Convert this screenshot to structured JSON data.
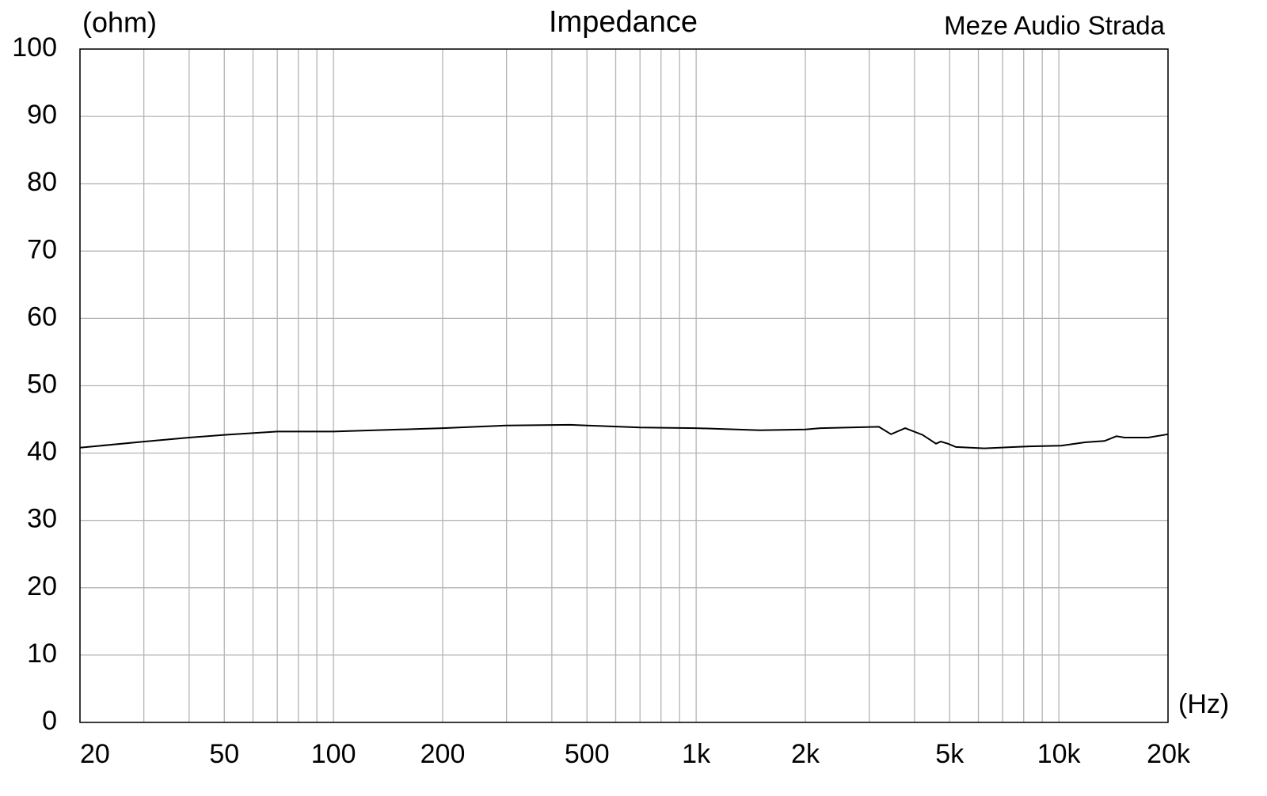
{
  "chart_data": {
    "type": "line",
    "title": "Impedance",
    "subtitle": "Meze Audio Strada",
    "y_label": "(ohm)",
    "x_label": "(Hz)",
    "xscale": "log",
    "xlim": [
      20,
      20000
    ],
    "ylim": [
      0,
      100
    ],
    "xticks": [
      20,
      50,
      100,
      200,
      500,
      {
        "value": 1000,
        "label": "1k"
      },
      {
        "value": 2000,
        "label": "2k"
      },
      {
        "value": 5000,
        "label": "5k"
      },
      {
        "value": 10000,
        "label": "10k"
      },
      {
        "value": 20000,
        "label": "20k"
      }
    ],
    "xminorticks": [
      30,
      40,
      60,
      70,
      80,
      90,
      300,
      400,
      600,
      700,
      800,
      900,
      3000,
      4000,
      6000,
      7000,
      8000,
      9000
    ],
    "yticks": [
      0,
      10,
      20,
      30,
      40,
      50,
      60,
      70,
      80,
      90,
      100
    ],
    "grid": true,
    "x": [
      20,
      30,
      40,
      50,
      70,
      100,
      200,
      300,
      450,
      500,
      700,
      1000,
      1500,
      2000,
      2200,
      3190,
      3445,
      3770,
      4210,
      4585,
      4724,
      4940,
      5200,
      6230,
      8300,
      10150,
      11800,
      13370,
      14420,
      15170,
      17630,
      20000
    ],
    "series": [
      {
        "name": "Impedance",
        "color": "#000000",
        "values": [
          40.8,
          41.7,
          42.3,
          42.7,
          43.2,
          43.2,
          43.7,
          44.1,
          44.2,
          44.1,
          43.8,
          43.7,
          43.4,
          43.5,
          43.7,
          43.9,
          42.8,
          43.7,
          42.7,
          41.4,
          41.7,
          41.4,
          40.9,
          40.7,
          41.0,
          41.1,
          41.6,
          41.8,
          42.5,
          42.3,
          42.3,
          42.8
        ]
      }
    ]
  }
}
